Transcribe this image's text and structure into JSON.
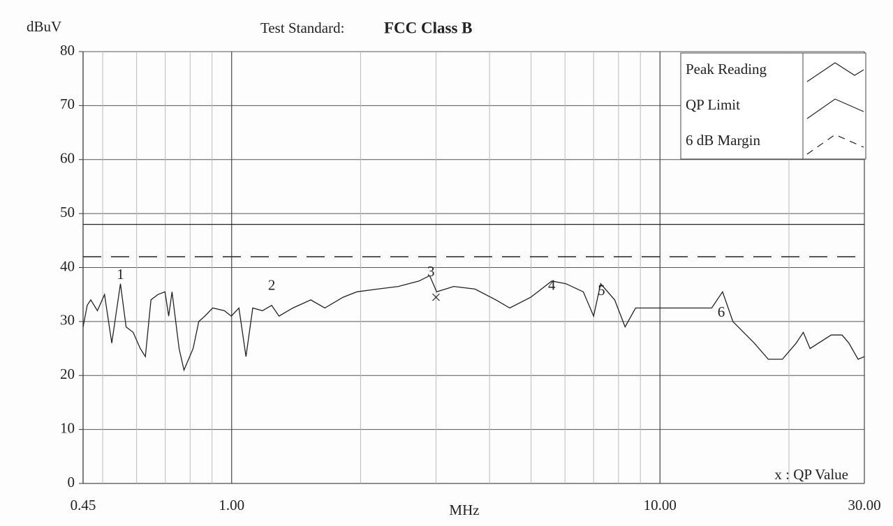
{
  "chart_data": {
    "type": "line",
    "ylabel": "dBuV",
    "xlabel": "MHz",
    "title_label": "Test Standard:",
    "title": "FCC Class B",
    "note": "x : QP Value",
    "log_x": true,
    "grid": true,
    "legend": "top-right",
    "xlim": [
      0.45,
      30
    ],
    "ylim": [
      0,
      80
    ],
    "xticks": [
      0.45,
      {
        "value": 1,
        "label": "1.00"
      },
      {
        "value": 10,
        "label": "10.00"
      },
      {
        "value": 30,
        "label": "30.00"
      }
    ],
    "x_minor_grid": [
      0.5,
      0.6,
      0.7,
      0.8,
      0.9,
      2,
      3,
      4,
      5,
      6,
      7,
      8,
      9,
      20
    ],
    "yticks": [
      0,
      10,
      20,
      30,
      40,
      50,
      60,
      70,
      80
    ],
    "series": [
      {
        "name": "Peak Reading",
        "color": "#222222",
        "style": "solid",
        "x": [
          0.45,
          0.46,
          0.469,
          0.486,
          0.505,
          0.525,
          0.55,
          0.567,
          0.589,
          0.612,
          0.629,
          0.648,
          0.673,
          0.699,
          0.713,
          0.726,
          0.754,
          0.774,
          0.813,
          0.838,
          0.866,
          0.903,
          0.962,
          0.998,
          1.04,
          1.08,
          1.12,
          1.18,
          1.24,
          1.29,
          1.39,
          1.53,
          1.65,
          1.82,
          1.96,
          2.19,
          2.45,
          2.74,
          2.9,
          3.01,
          3.3,
          3.7,
          4.14,
          4.46,
          4.99,
          5.59,
          6.03,
          6.62,
          7.0,
          7.27,
          7.84,
          8.29,
          8.77,
          9.82,
          11.0,
          12.3,
          13.2,
          14.0,
          14.8,
          16.6,
          17.9,
          19.3,
          20.8,
          21.6,
          22.4,
          25.1,
          26.6,
          27.6,
          29.0,
          30.0
        ],
        "values": [
          29,
          33,
          34,
          32,
          35,
          26,
          37,
          29,
          28,
          25,
          23.5,
          34,
          35,
          35.5,
          31,
          35.5,
          25,
          21,
          25,
          30,
          31,
          32.5,
          32,
          31,
          32.5,
          23.5,
          32.5,
          32,
          33,
          31,
          32.5,
          34,
          32.5,
          34.5,
          35.5,
          36,
          36.5,
          37.5,
          38.5,
          35.5,
          36.5,
          36,
          34,
          32.5,
          34.5,
          37.5,
          37,
          35.5,
          31,
          37,
          34,
          29,
          32.5,
          32.5,
          32.5,
          32.5,
          32.5,
          35.5,
          30,
          26,
          23,
          23,
          26,
          28,
          25,
          27.5,
          27.5,
          26,
          23,
          23.5
        ]
      },
      {
        "name": "QP Limit",
        "color": "#222222",
        "style": "solid",
        "x": [
          0.45,
          30
        ],
        "values": [
          48,
          48
        ]
      },
      {
        "name": "6 dB Margin",
        "color": "#222222",
        "style": "dashed",
        "x": [
          0.45,
          30
        ],
        "values": [
          42,
          42
        ]
      }
    ],
    "markers": [
      {
        "label": "1",
        "x": 0.55,
        "y": 38.5
      },
      {
        "label": "2",
        "x": 1.24,
        "y": 36.5
      },
      {
        "label": "3",
        "x": 2.92,
        "y": 39
      },
      {
        "label": "4",
        "x": 5.59,
        "y": 36.5
      },
      {
        "label": "5",
        "x": 7.3,
        "y": 35.5
      },
      {
        "label": "6",
        "x": 13.9,
        "y": 31.5
      }
    ],
    "qp_values": [
      {
        "x": 3.0,
        "y": 34.5
      }
    ]
  }
}
